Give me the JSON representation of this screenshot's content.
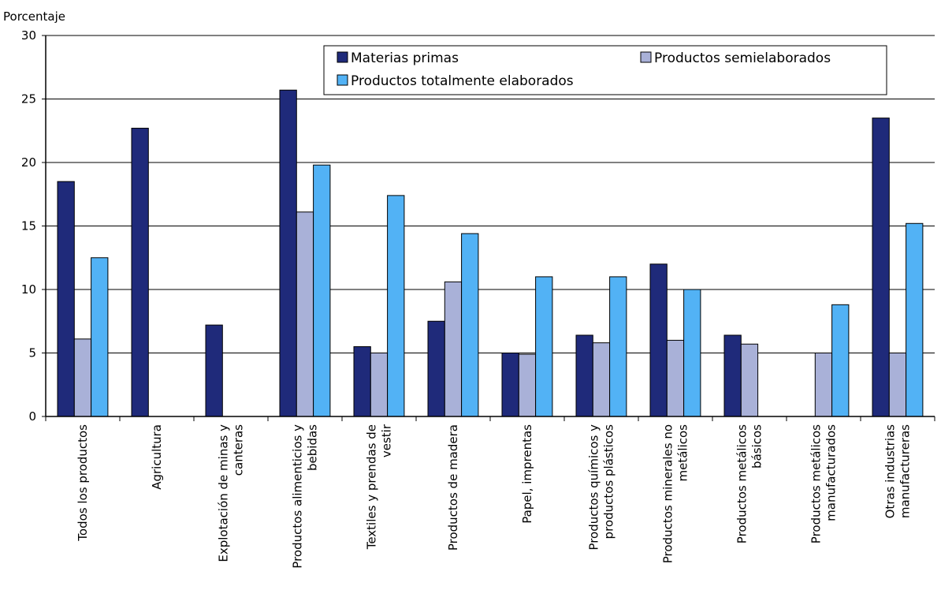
{
  "chart_data": {
    "type": "bar",
    "ylabel": "Porcentaje",
    "ylim": [
      0,
      30
    ],
    "yticks": [
      0,
      5,
      10,
      15,
      20,
      25,
      30
    ],
    "grid": true,
    "legend_position": "top",
    "categories": [
      [
        "Todos los productos"
      ],
      [
        "Agricultura"
      ],
      [
        "Explotación de minas y",
        "canteras"
      ],
      [
        "Productos alimenticios y",
        "bebidas"
      ],
      [
        "Textiles y prendas de",
        "vestir"
      ],
      [
        "Productos de madera"
      ],
      [
        "Papel, imprentas"
      ],
      [
        "Productos químicos y",
        "productos plásticos"
      ],
      [
        "Productos minerales no",
        "metálicos"
      ],
      [
        "Productos metálicos",
        "básicos"
      ],
      [
        "Productos metálicos",
        "manufacturados"
      ],
      [
        "Otras industrias",
        "manufactureras"
      ]
    ],
    "series": [
      {
        "name": "Materias primas",
        "color": "#1f2a7a",
        "values": [
          18.5,
          22.7,
          7.2,
          25.7,
          5.5,
          7.5,
          5.0,
          6.4,
          12.0,
          6.4,
          null,
          23.5
        ]
      },
      {
        "name": "Productos semielaborados",
        "color": "#a9b1d8",
        "values": [
          6.1,
          null,
          null,
          16.1,
          5.0,
          10.6,
          4.9,
          5.8,
          6.0,
          5.7,
          5.0,
          5.0
        ]
      },
      {
        "name": "Productos totalmente elaborados",
        "color": "#52b2f5",
        "values": [
          12.5,
          null,
          null,
          19.8,
          17.4,
          14.4,
          11.0,
          11.0,
          10.0,
          null,
          8.8,
          15.2
        ]
      }
    ]
  }
}
